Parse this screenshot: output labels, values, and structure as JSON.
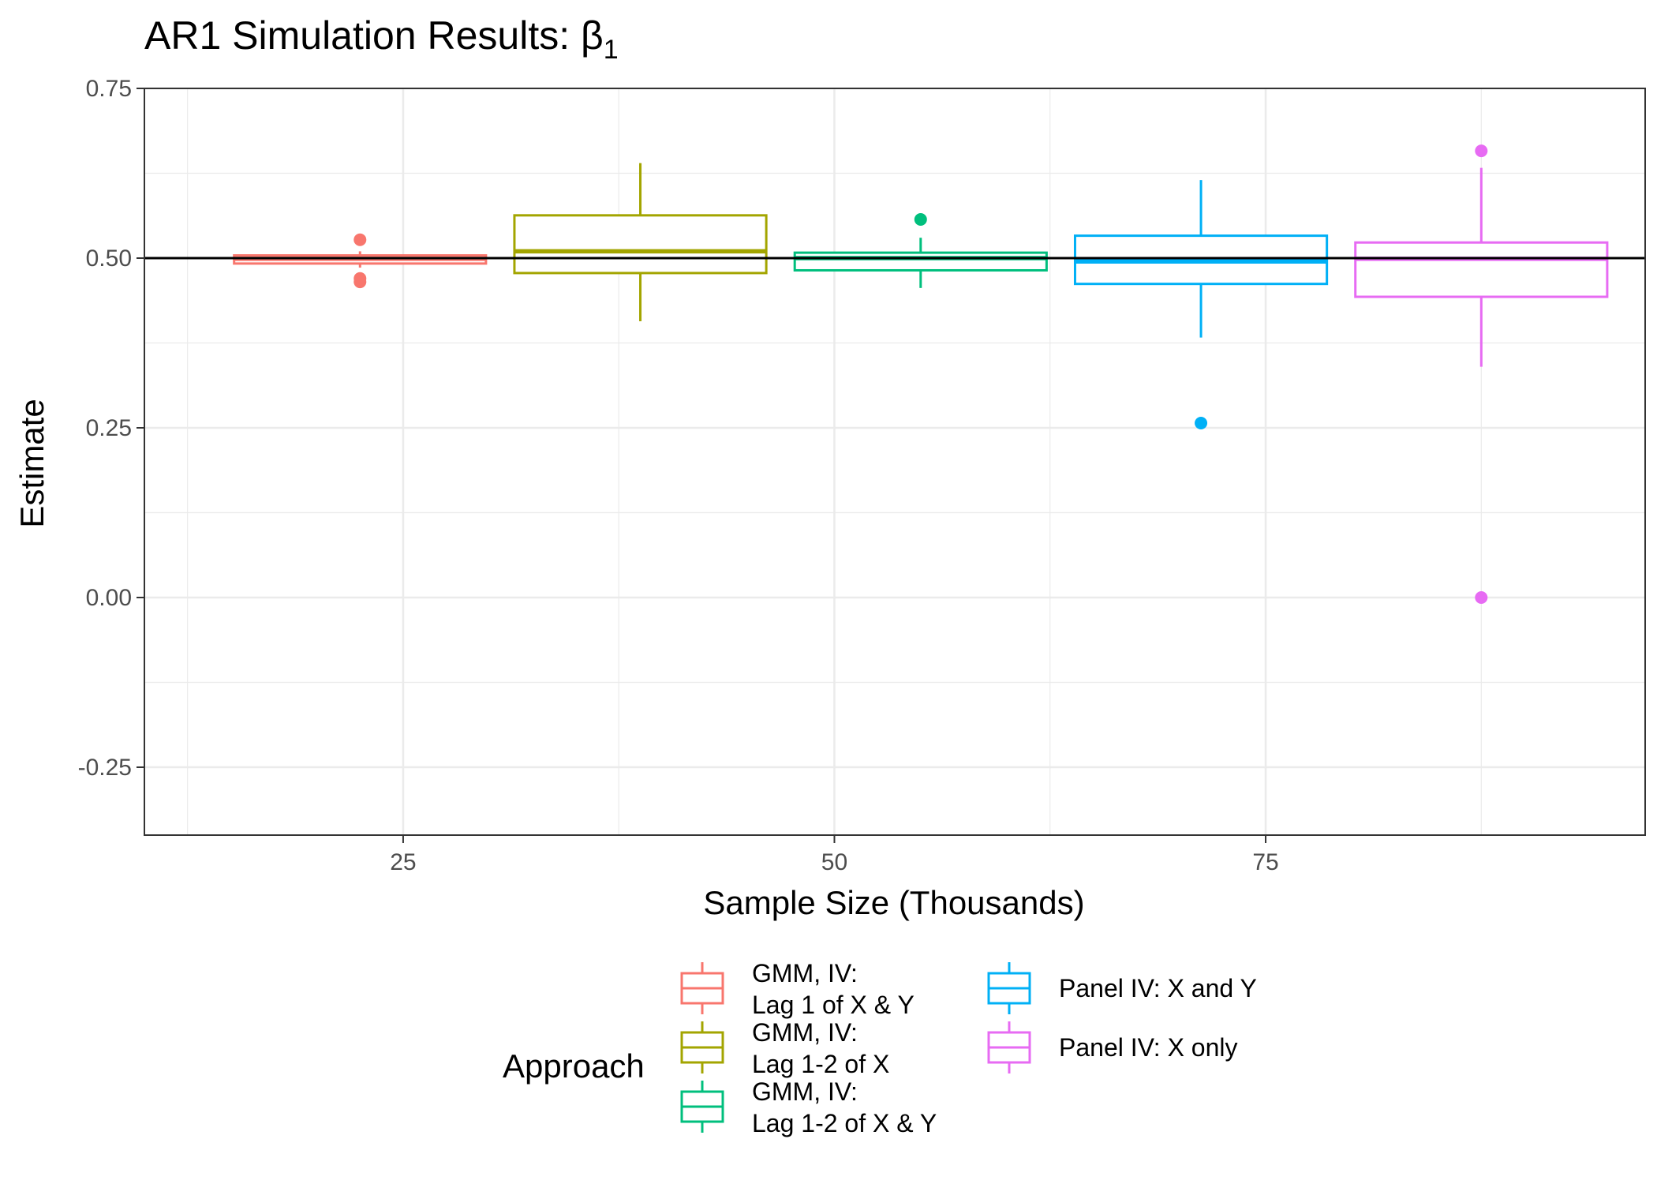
{
  "chart_data": {
    "type": "boxplot",
    "title": "AR1 Simulation Results: β",
    "title_subscript": "1",
    "xlabel": "Sample Size (Thousands)",
    "ylabel": "Estimate",
    "xlim": [
      10,
      97
    ],
    "ylim": [
      -0.35,
      0.75
    ],
    "x_ticks": [
      25,
      50,
      75
    ],
    "x_tick_labels": [
      "25",
      "50",
      "75"
    ],
    "y_ticks": [
      -0.25,
      0,
      0.25,
      0.5,
      0.75
    ],
    "y_tick_labels": [
      "-0.25",
      "0.00",
      "0.25",
      "0.50",
      "0.75"
    ],
    "reference_line_y": 0.5,
    "grid": true,
    "legend_title": "Approach",
    "legend_position": "bottom",
    "series": [
      {
        "name": "GMM, IV:\nLag 1 of X & Y",
        "color": "#F8766D",
        "x_center": 22.5,
        "x_range": [
          15.2,
          29.8
        ],
        "q1": 0.492,
        "median": 0.499,
        "q3": 0.504,
        "whisker_low": 0.486,
        "whisker_high": 0.51,
        "outliers": [
          0.527,
          0.47,
          0.465
        ]
      },
      {
        "name": "GMM, IV:\nLag 1-2 of X",
        "color": "#A3A500",
        "x_center": 38.75,
        "x_range": [
          31.45,
          46.05
        ],
        "q1": 0.478,
        "median": 0.51,
        "q3": 0.563,
        "whisker_low": 0.407,
        "whisker_high": 0.64,
        "outliers": []
      },
      {
        "name": "GMM, IV:\nLag 1-2 of X & Y",
        "color": "#00BF7D",
        "x_center": 55.0,
        "x_range": [
          47.7,
          62.3
        ],
        "q1": 0.482,
        "median": 0.5,
        "q3": 0.508,
        "whisker_low": 0.456,
        "whisker_high": 0.53,
        "outliers": [
          0.557
        ]
      },
      {
        "name": "Panel IV: X and Y",
        "color": "#00B0F6",
        "x_center": 71.25,
        "x_range": [
          63.95,
          78.55
        ],
        "q1": 0.462,
        "median": 0.495,
        "q3": 0.533,
        "whisker_low": 0.383,
        "whisker_high": 0.615,
        "outliers": [
          0.257
        ]
      },
      {
        "name": "Panel IV: X only",
        "color": "#E76BF3",
        "x_center": 87.5,
        "x_range": [
          80.2,
          94.8
        ],
        "q1": 0.443,
        "median": 0.499,
        "q3": 0.523,
        "whisker_low": 0.34,
        "whisker_high": 0.633,
        "outliers": [
          0.658,
          0.0
        ]
      }
    ]
  }
}
